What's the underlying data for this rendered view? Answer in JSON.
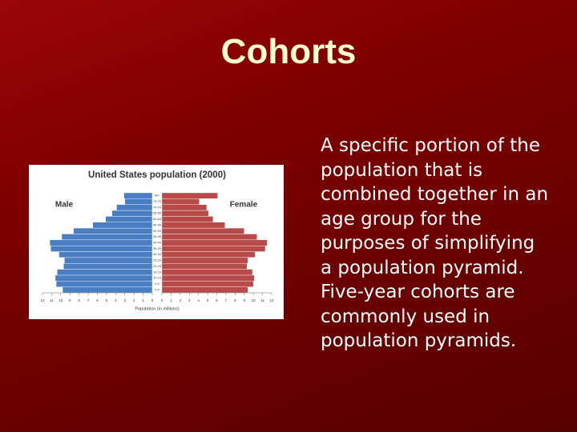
{
  "title": "Cohorts",
  "body": "A specific portion of the population that is combined together in an age group for the purposes of simplifying a population pyramid. Five-year cohorts are commonly used in population pyramids.",
  "chart_data": {
    "type": "pyramid",
    "title": "United States population (2000)",
    "x_label": "Population (in millions)",
    "categories": [
      "0-4",
      "5-9",
      "10-14",
      "15-19",
      "20-24",
      "25-29",
      "30-34",
      "35-39",
      "40-44",
      "45-49",
      "50-54",
      "55-59",
      "60-64",
      "65-69",
      "70-74",
      "75-79",
      "80+"
    ],
    "series": [
      {
        "name": "Male",
        "color": "#4a7ec2",
        "values": [
          9.8,
          10.5,
          10.6,
          10.4,
          9.7,
          9.6,
          10.2,
          11.1,
          11.2,
          9.9,
          8.6,
          6.5,
          5.1,
          4.4,
          3.9,
          3.0,
          3.1
        ]
      },
      {
        "name": "Female",
        "color": "#b84a4a",
        "values": [
          9.4,
          10.0,
          10.1,
          9.9,
          9.3,
          9.4,
          10.2,
          11.3,
          11.5,
          10.4,
          9.0,
          6.9,
          5.6,
          5.1,
          4.9,
          4.1,
          6.1
        ]
      }
    ],
    "xlim": [
      0,
      12
    ],
    "xticks": [
      0,
      1,
      2,
      3,
      4,
      5,
      6,
      7,
      8,
      9,
      10,
      11,
      12
    ]
  }
}
